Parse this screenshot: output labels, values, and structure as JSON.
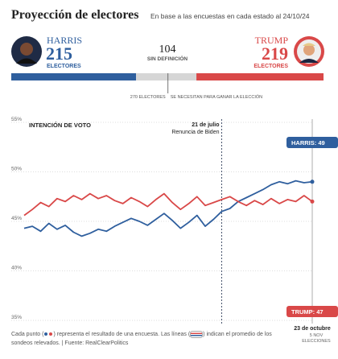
{
  "header": {
    "title": "Proyección de electores",
    "subtitle": "En base a las encuestas en cada estado al 24/10/24"
  },
  "electors": {
    "harris": {
      "name": "HARRIS",
      "value": 215,
      "label": "ELECTORES",
      "color": "#2f5f9e"
    },
    "undecided": {
      "value": 104,
      "label": "SIN DEFINICIÓN",
      "color": "#d6d6d6"
    },
    "trump": {
      "name": "TRUMP",
      "value": 219,
      "label": "ELECTORES",
      "color": "#d94848"
    },
    "threshold": {
      "value": 270,
      "label": "270 ELECTORES",
      "note": "SE NECESITAN PARA GANAR LA ELECCIÓN"
    }
  },
  "chart_data": {
    "type": "line",
    "title": "INTENCIÓN DE VOTO",
    "categories": [
      null,
      null,
      null,
      null,
      null,
      null,
      null,
      null,
      null,
      null,
      null,
      null,
      null,
      null,
      null,
      null,
      null,
      null,
      null,
      null,
      null,
      null,
      null,
      null,
      "21 de julio",
      null,
      null,
      null,
      null,
      null,
      null,
      null,
      null,
      null,
      null,
      "23 de octubre"
    ],
    "series": [
      {
        "name": "HARRIS",
        "end_label": "HARRIS: 49",
        "color": "#2f5f9e",
        "values": [
          44.3,
          44.5,
          44.0,
          44.8,
          44.2,
          44.6,
          43.9,
          43.5,
          43.8,
          44.2,
          44.0,
          44.5,
          44.9,
          45.3,
          45.0,
          44.6,
          45.2,
          45.8,
          45.1,
          44.3,
          44.9,
          45.6,
          44.5,
          45.2,
          46.0,
          46.3,
          47.0,
          47.4,
          47.8,
          48.2,
          48.7,
          49.0,
          48.8,
          49.1,
          48.9,
          49.0
        ]
      },
      {
        "name": "TRUMP",
        "end_label": "TRUMP: 47",
        "color": "#d94848",
        "values": [
          45.6,
          46.2,
          46.9,
          46.5,
          47.3,
          47.0,
          47.6,
          47.2,
          47.8,
          47.3,
          47.6,
          47.1,
          46.8,
          47.4,
          47.0,
          46.5,
          47.2,
          47.8,
          46.9,
          46.2,
          46.8,
          47.5,
          46.6,
          46.9,
          47.2,
          47.5,
          47.0,
          46.6,
          47.1,
          46.7,
          47.3,
          46.8,
          47.2,
          47.0,
          47.6,
          47.0
        ]
      }
    ],
    "ylim": [
      35,
      55
    ],
    "yticks": [
      {
        "value": 35,
        "label": "35%"
      },
      {
        "value": 40,
        "label": "40%"
      },
      {
        "value": 45,
        "label": "45%"
      },
      {
        "value": 50,
        "label": "50%"
      },
      {
        "value": 55,
        "label": "55%"
      }
    ],
    "grid": true,
    "annotations": {
      "event": "Renuncia de Biden",
      "election_date": "5 NOV",
      "election_label": "ELECCIONES"
    }
  },
  "footnote": [
    "Cada punto",
    "representa el resultado de una encuesta. Las líneas",
    "indican el promedio de los sondeos relevados. | Fuente: RealClearPolitics"
  ]
}
